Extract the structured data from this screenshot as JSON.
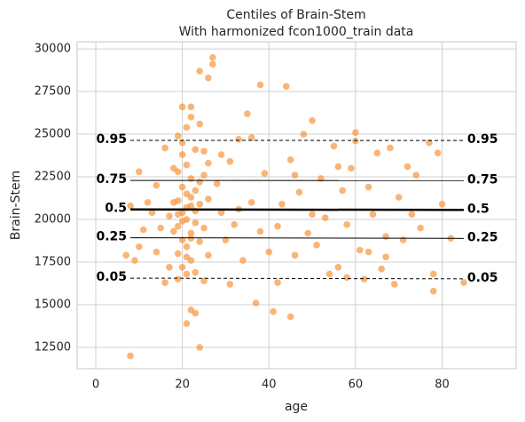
{
  "chart_data": {
    "type": "scatter",
    "title": "Centiles of Brain-Stem",
    "subtitle": "With harmonized fcon1000_train data",
    "x_label": "age",
    "y_label": "Brain-Stem",
    "xlim": [
      -4.3,
      97.1
    ],
    "ylim": [
      11250,
      30420
    ],
    "xticks": [
      0,
      20,
      40,
      60,
      80
    ],
    "yticks": [
      12500,
      15000,
      17500,
      20000,
      22500,
      25000,
      27500,
      30000
    ],
    "grid": true,
    "color": "#f7963b",
    "x": [
      19,
      20,
      21,
      22,
      20,
      21,
      19,
      22,
      20,
      21,
      19,
      22,
      20,
      21,
      19,
      22,
      20,
      21,
      19,
      22,
      20,
      21,
      19,
      23,
      24,
      23,
      24,
      25,
      26,
      25,
      26,
      23,
      24,
      22,
      23,
      24,
      21,
      22,
      24,
      26,
      27,
      27,
      18,
      18,
      18,
      17,
      17,
      25,
      26,
      23,
      25,
      20,
      21,
      22,
      20,
      19,
      23,
      24,
      21,
      22,
      8,
      8,
      9,
      10,
      11,
      12,
      14,
      14,
      15,
      16,
      13,
      7,
      10,
      16,
      28,
      29,
      30,
      31,
      32,
      33,
      34,
      35,
      36,
      37,
      38,
      38,
      39,
      40,
      41,
      42,
      43,
      44,
      45,
      45,
      46,
      47,
      48,
      49,
      50,
      51,
      52,
      53,
      54,
      55,
      56,
      57,
      58,
      59,
      60,
      61,
      62,
      63,
      64,
      65,
      66,
      67,
      68,
      69,
      70,
      71,
      72,
      73,
      75,
      77,
      78,
      78,
      79,
      80,
      85,
      82,
      74,
      60,
      56,
      46,
      42,
      36,
      31,
      33,
      29,
      67,
      58,
      63,
      50
    ],
    "values": [
      24900,
      24500,
      25400,
      26000,
      23800,
      23200,
      22800,
      22400,
      21900,
      21500,
      21100,
      20800,
      20400,
      20000,
      19600,
      19200,
      18800,
      18400,
      18000,
      17600,
      17200,
      16800,
      16500,
      21700,
      20900,
      19800,
      18700,
      22600,
      21200,
      19500,
      17900,
      24100,
      25600,
      14700,
      14500,
      12500,
      13900,
      26600,
      28700,
      28300,
      29500,
      29100,
      21000,
      19300,
      23000,
      17200,
      20200,
      24000,
      23300,
      16900,
      16400,
      26600,
      20700,
      21300,
      19900,
      20300,
      20500,
      22200,
      17800,
      18900,
      12000,
      20800,
      17600,
      22800,
      19400,
      21000,
      18100,
      22000,
      19500,
      16300,
      20400,
      17900,
      18400,
      24200,
      22100,
      20400,
      18800,
      23400,
      19700,
      24700,
      17600,
      26200,
      21000,
      15100,
      27900,
      19300,
      22700,
      18100,
      14600,
      16300,
      20900,
      27800,
      14300,
      23500,
      17900,
      21600,
      25000,
      19200,
      25800,
      18500,
      22400,
      20100,
      16800,
      24300,
      17200,
      21700,
      19700,
      23000,
      25100,
      18200,
      16500,
      21900,
      20300,
      23900,
      17100,
      19000,
      24200,
      16200,
      21300,
      18800,
      23100,
      20300,
      19500,
      24500,
      15800,
      16800,
      23900,
      20900,
      16300,
      18900,
      22600,
      24600,
      23100,
      22600,
      19600,
      24800,
      16200,
      20600,
      23800,
      17800,
      16600,
      18100,
      20300
    ],
    "centiles": [
      {
        "label": "0.05",
        "x": [
          8,
          85
        ],
        "values": [
          16560,
          16520
        ],
        "linestyle": "dashed",
        "linewidth": 1
      },
      {
        "label": "0.25",
        "x": [
          8,
          85
        ],
        "values": [
          18930,
          18890
        ],
        "linestyle": "solid",
        "linewidth": 1
      },
      {
        "label": "0.5",
        "x": [
          8,
          85
        ],
        "values": [
          20590,
          20560
        ],
        "linestyle": "solid",
        "linewidth": 2.5
      },
      {
        "label": "0.75",
        "x": [
          8,
          85
        ],
        "values": [
          22290,
          22280
        ],
        "linestyle": "solid",
        "linewidth": 1
      },
      {
        "label": "0.95",
        "x": [
          8,
          85
        ],
        "values": [
          24640,
          24630
        ],
        "linestyle": "dashed",
        "linewidth": 1
      }
    ]
  }
}
